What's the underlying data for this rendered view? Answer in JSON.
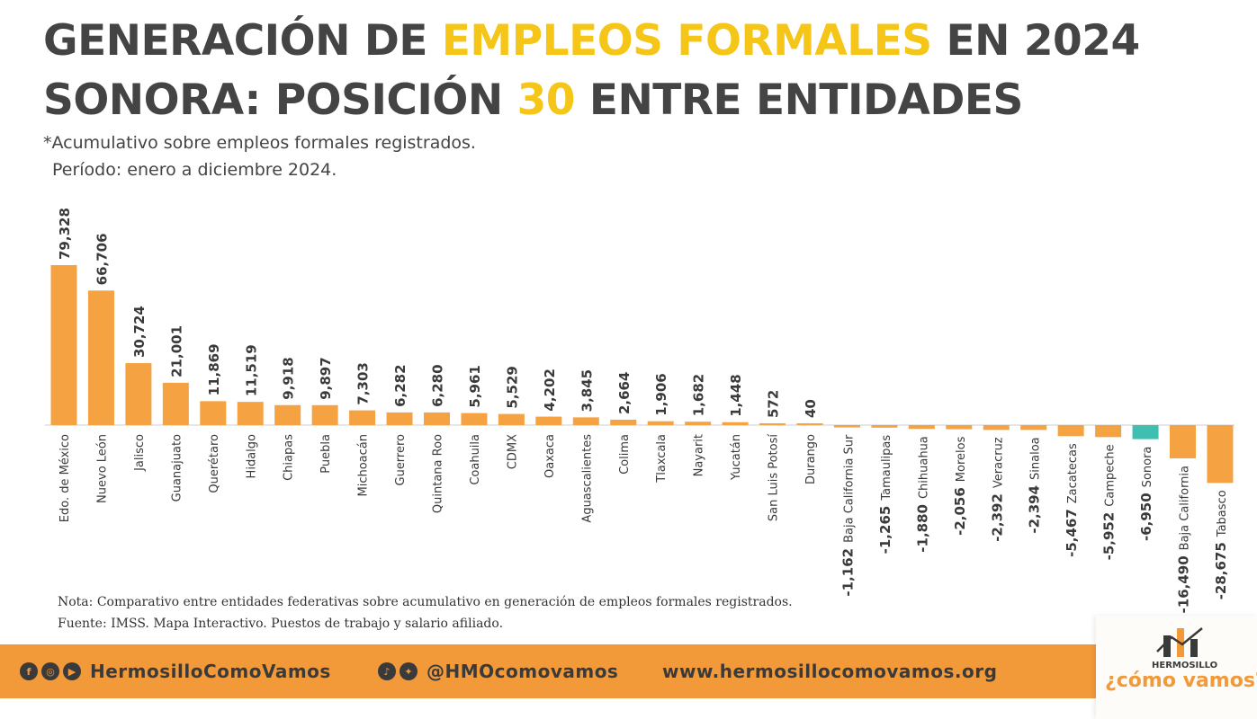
{
  "header": {
    "line1_a": "GENERACIÓN DE ",
    "line1_b": "EMPLEOS FORMALES",
    "line1_c": " EN 2024",
    "line2_a": "SONORA: POSICIÓN ",
    "line2_b": "30",
    "line2_c": " ENTRE ENTIDADES",
    "subtitle1": "*Acumulativo sobre empleos formales registrados.",
    "subtitle2": "Período: enero a diciembre 2024."
  },
  "chart_data": {
    "type": "bar",
    "categories": [
      "Edo. de México",
      "Nuevo León",
      "Jalisco",
      "Guanajuato",
      "Querétaro",
      "Hidalgo",
      "Chiapas",
      "Puebla",
      "Michoacán",
      "Guerrero",
      "Quintana Roo",
      "Coahuila",
      "CDMX",
      "Oaxaca",
      "Aguascalientes",
      "Colima",
      "Tlaxcala",
      "Nayarit",
      "Yucatán",
      "San Luis Potosí",
      "Durango",
      "Baja California Sur",
      "Tamaulipas",
      "Chihuahua",
      "Morelos",
      "Veracruz",
      "Sinaloa",
      "Zacatecas",
      "Campeche",
      "Sonora",
      "Baja California",
      "Tabasco"
    ],
    "values": [
      79328,
      66706,
      30724,
      21001,
      11869,
      11519,
      9918,
      9897,
      7303,
      6282,
      6280,
      5961,
      5529,
      4202,
      3845,
      2664,
      1906,
      1682,
      1448,
      572,
      40,
      -1162,
      -1265,
      -1880,
      -2056,
      -2392,
      -2394,
      -5467,
      -5952,
      -6950,
      -16490,
      -28675
    ],
    "labels": [
      "79,328",
      "66,706",
      "30,724",
      "21,001",
      "11,869",
      "11,519",
      "9,918",
      "9,897",
      "7,303",
      "6,282",
      "6,280",
      "5,961",
      "5,529",
      "4,202",
      "3,845",
      "2,664",
      "1,906",
      "1,682",
      "1,448",
      "572",
      "40",
      "-1,162",
      "-1,265",
      "-1,880",
      "-2,056",
      "-2,392",
      "-2,394",
      "-5,467",
      "-5,952",
      "-6,950",
      "-16,490",
      "-28,675"
    ],
    "highlight_category": "Sonora",
    "grid": false,
    "colors": {
      "bar": "#f5a243",
      "highlight": "#3fbfb0",
      "baseline": "#cccccc"
    }
  },
  "notes": {
    "note": "Nota: Comparativo entre entidades federativas sobre acumulativo en generación de empleos formales registrados.",
    "source": "Fuente: IMSS. Mapa Interactivo. Puestos de trabajo y salario afiliado."
  },
  "footer": {
    "social1": "HermosilloComoVamos",
    "social2": "@HMOcomovamos",
    "website": "www.hermosillocomovamos.org",
    "icons": [
      "facebook-icon",
      "instagram-icon",
      "youtube-icon",
      "tiktok-icon",
      "twitter-icon"
    ]
  },
  "logo": {
    "small": "HERMOSILLO",
    "main": "¿cómo vamos?"
  }
}
